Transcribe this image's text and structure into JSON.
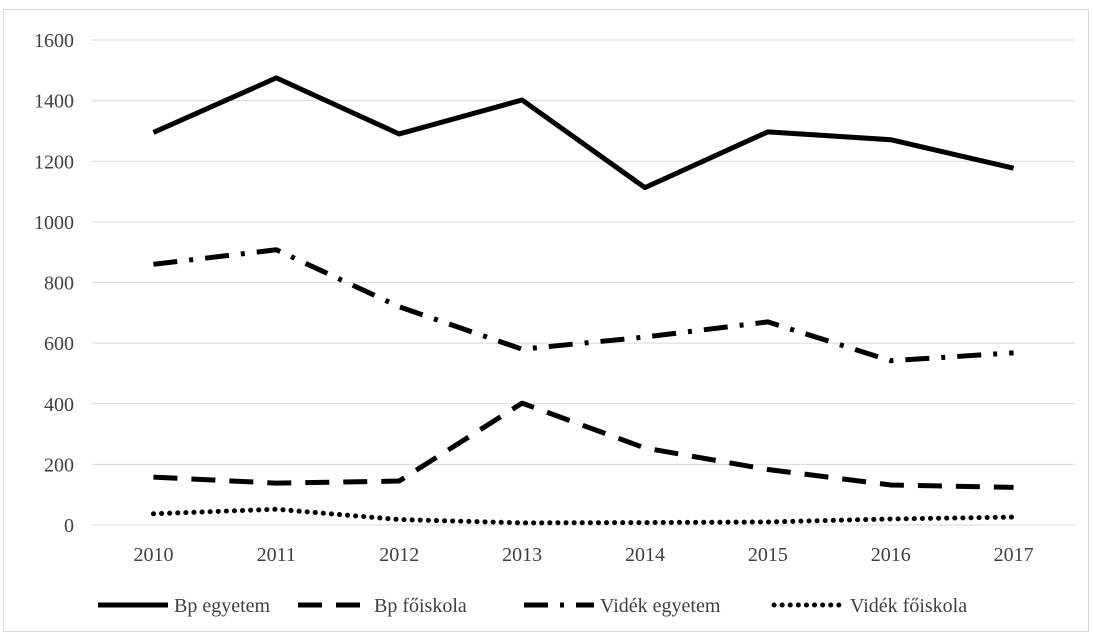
{
  "chart_data": {
    "type": "line",
    "title": "",
    "xlabel": "",
    "ylabel": "",
    "categories": [
      "2010",
      "2011",
      "2012",
      "2013",
      "2014",
      "2015",
      "2016",
      "2017"
    ],
    "ylim": [
      0,
      1600
    ],
    "yticks": [
      0,
      200,
      400,
      600,
      800,
      1000,
      1200,
      1400,
      1600
    ],
    "ytick_labels": [
      "0",
      "200",
      "400",
      "600",
      "800",
      "1000",
      "1200",
      "1400",
      "1600"
    ],
    "grid": true,
    "legend_position": "bottom",
    "series": [
      {
        "name": "Bp egyetem",
        "values": [
          1295,
          1475,
          1290,
          1402,
          1113,
          1297,
          1271,
          1177
        ],
        "style": "solid"
      },
      {
        "name": "Bp főiskola",
        "values": [
          158,
          138,
          145,
          402,
          254,
          183,
          132,
          124
        ],
        "style": "dash"
      },
      {
        "name": "Vidék egyetem",
        "values": [
          860,
          908,
          720,
          580,
          620,
          670,
          542,
          568
        ],
        "style": "dashdot"
      },
      {
        "name": "Vidék főiskola",
        "values": [
          37,
          52,
          18,
          7,
          8,
          10,
          20,
          26
        ],
        "style": "dot"
      }
    ],
    "colors": {
      "line": "#000000",
      "grid": "#d9d9d9",
      "text": "#404040"
    }
  }
}
